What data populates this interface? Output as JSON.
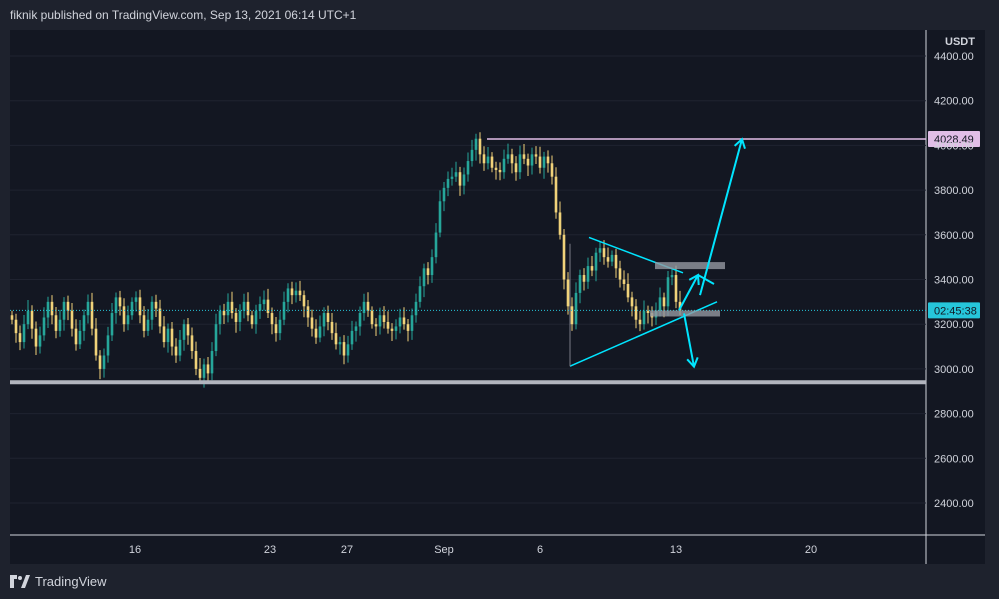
{
  "header": {
    "publish_text": "fiknik published on TradingView.com, Sep 13, 2021 06:14 UTC+1"
  },
  "footer": {
    "brand": "TradingView",
    "logo_icon": "tradingview-logo-icon"
  },
  "colors": {
    "background": "#131722",
    "up": "#26a69a",
    "down": "#f0d27a",
    "resistance_line": "#e1bee7",
    "support_line": "#b2b5be",
    "annotation": "#00e5ff",
    "current_price_line": "#26c6da",
    "zone": "#9598a1"
  },
  "chart_data": {
    "type": "candlestick",
    "title": "",
    "currency": "USDT",
    "x_tick_labels": [
      "16",
      "23",
      "27",
      "Sep",
      "6",
      "13",
      "20"
    ],
    "y_ticks": [
      4400,
      4200,
      4000,
      3800,
      3600,
      3400,
      3200,
      3000,
      2800,
      2600,
      2400
    ],
    "y_tick_labels": [
      "4400.00",
      "4200.00",
      "4000.00",
      "3800.00",
      "3600.00",
      "3400.00",
      "3200.00",
      "3000.00",
      "2800.00",
      "2600.00",
      "2400.00"
    ],
    "ylim": [
      2230,
      4500
    ],
    "last_price": 3262,
    "countdown_label": "02:45:38",
    "resistance": {
      "price": 4028.49,
      "label": "4028.49"
    },
    "support": {
      "price": 2940
    },
    "series": [
      {
        "name": "",
        "interval_hours": 4,
        "pattern": "hourly price path, Aug 10 – Sep 13, 2021",
        "closes": [
          3220,
          3160,
          3120,
          3200,
          3260,
          3180,
          3100,
          3150,
          3230,
          3300,
          3240,
          3170,
          3220,
          3300,
          3260,
          3180,
          3110,
          3170,
          3240,
          3300,
          3180,
          3060,
          3000,
          3060,
          3150,
          3250,
          3320,
          3280,
          3200,
          3240,
          3300,
          3320,
          3240,
          3170,
          3220,
          3300,
          3270,
          3190,
          3120,
          3180,
          3100,
          3060,
          3130,
          3200,
          3150,
          3080,
          3000,
          2960,
          3020,
          2980,
          3080,
          3200,
          3260,
          3240,
          3300,
          3250,
          3210,
          3260,
          3300,
          3240,
          3200,
          3260,
          3290,
          3310,
          3250,
          3200,
          3160,
          3220,
          3300,
          3360,
          3330,
          3350,
          3330,
          3280,
          3230,
          3180,
          3140,
          3190,
          3250,
          3210,
          3160,
          3110,
          3120,
          3060,
          3110,
          3170,
          3190,
          3250,
          3300,
          3260,
          3200,
          3190,
          3240,
          3210,
          3180,
          3170,
          3190,
          3230,
          3200,
          3170,
          3240,
          3300,
          3370,
          3450,
          3420,
          3500,
          3610,
          3750,
          3810,
          3850,
          3860,
          3880,
          3820,
          3870,
          3930,
          3980,
          4030,
          3960,
          3920,
          3950,
          3900,
          3890,
          3880,
          3940,
          3960,
          3920,
          3880,
          3960,
          3940,
          3910,
          3960,
          3950,
          3900,
          3950,
          3920,
          3860,
          3700,
          3600,
          3400,
          3280,
          3200,
          3340,
          3420,
          3390,
          3460,
          3440,
          3520,
          3540,
          3500,
          3480,
          3510,
          3450,
          3400,
          3380,
          3320,
          3280,
          3220,
          3200,
          3260,
          3250,
          3230,
          3260,
          3320,
          3280,
          3410,
          3420,
          3300,
          3262
        ]
      }
    ],
    "annotations": [
      {
        "type": "symmetrical-triangle",
        "upper": [
          [
            3588,
            "Sep 7"
          ],
          [
            3430,
            "Sep 13"
          ]
        ],
        "lower": [
          [
            3012,
            "Sep 7"
          ],
          [
            3300,
            "Sep 15"
          ]
        ]
      },
      {
        "type": "zone",
        "label": "upper box",
        "price": 3460
      },
      {
        "type": "zone",
        "label": "lower box",
        "price": 3248
      },
      {
        "type": "arrow",
        "direction": "up",
        "target": 4028
      },
      {
        "type": "arrow",
        "direction": "down",
        "target": 3010
      }
    ]
  }
}
